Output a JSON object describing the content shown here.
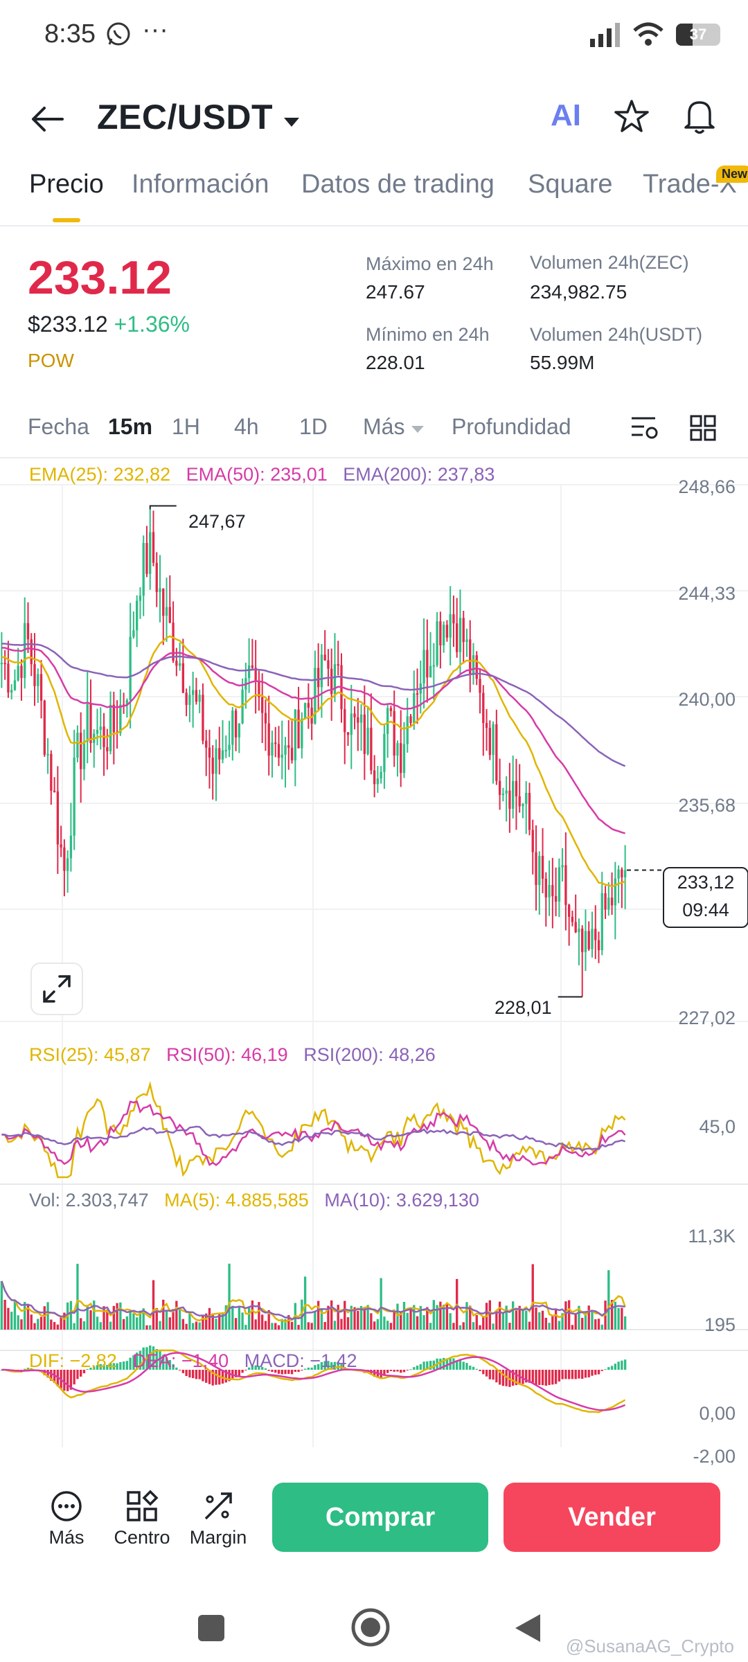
{
  "status_bar": {
    "time": "8:35",
    "battery": "37",
    "battery_level": 0.37
  },
  "header": {
    "pair": "ZEC/USDT",
    "ai_label": "AI"
  },
  "tabs": [
    {
      "label": "Precio",
      "active": true
    },
    {
      "label": "Información"
    },
    {
      "label": "Datos de trading"
    },
    {
      "label": "Square"
    },
    {
      "label": "Trade-X",
      "badge": "New"
    }
  ],
  "price": {
    "last": "233.12",
    "usd": "$233.12",
    "change": "+1.36%",
    "tag": "POW"
  },
  "stats": {
    "high_label": "Máximo en 24h",
    "high_value": "247.67",
    "low_label": "Mínimo en 24h",
    "low_value": "228.01",
    "vol_base_label": "Volumen 24h(ZEC)",
    "vol_base_value": "234,982.75",
    "vol_quote_label": "Volumen 24h(USDT)",
    "vol_quote_value": "55.99M"
  },
  "intervals": {
    "fecha": "Fecha",
    "m15": "15m",
    "h1": "1H",
    "h4": "4h",
    "d1": "1D",
    "mas": "Más",
    "depth": "Profundidad"
  },
  "indicators": {
    "ema25": "EMA(25): 232,82",
    "ema50": "EMA(50): 235,01",
    "ema200": "EMA(200): 237,83",
    "rsi25": "RSI(25): 45,87",
    "rsi50": "RSI(50): 46,19",
    "rsi200": "RSI(200): 48,26",
    "vol": "Vol: 2.303,747",
    "ma5": "MA(5): 4.885,585",
    "ma10": "MA(10): 3.629,130",
    "dif": "DIF: −2,82",
    "dea": "DEA: −1,40",
    "macd": "MACD: −1,42"
  },
  "chart_labels": {
    "price_axis": [
      "248,66",
      "244,33",
      "240,00",
      "235,68",
      "227,02"
    ],
    "high_marker": "247,67",
    "low_marker": "228,01",
    "current_price": "233,12",
    "countdown": "09:44",
    "rsi_axis": "45,0",
    "vol_axis_top": "11,3K",
    "vol_axis_bottom": "195",
    "macd_axis_top": "0,00",
    "macd_axis_bottom": "-2,00"
  },
  "chart_data": {
    "type": "candlestick",
    "interval": "15m",
    "ylim": [
      227.02,
      248.66
    ],
    "high": 247.67,
    "low": 228.01,
    "last": 233.12,
    "ema25_last": 232.82,
    "ema50_last": 235.01,
    "ema200_last": 237.83,
    "close_path": [
      241.5,
      240.8,
      242.5,
      240.2,
      236.8,
      233.0,
      237.5,
      239.0,
      238.5,
      238.8,
      240.5,
      245.0,
      246.0,
      243.5,
      242.0,
      240.5,
      239.0,
      237.0,
      238.5,
      239.5,
      240.5,
      239.0,
      238.5,
      237.5,
      239.5,
      240.0,
      241.5,
      240.5,
      239.0,
      238.5,
      237.5,
      239.0,
      238.0,
      240.5,
      241.5,
      243.0,
      243.5,
      242.5,
      240.5,
      239.0,
      237.0,
      236.5,
      235.5,
      233.0,
      231.5,
      232.5,
      230.0,
      229.5,
      231.0,
      232.0,
      233.12
    ],
    "rsi_ylim": [
      35,
      60
    ],
    "volume_ylim": [
      0,
      11300
    ],
    "macd_ylim": [
      -2.0,
      0.5
    ]
  },
  "actions": {
    "more": "Más",
    "center": "Centro",
    "margin": "Margin",
    "buy": "Comprar",
    "sell": "Vender"
  },
  "watermark": "@SusanaAG_Crypto",
  "colors": {
    "up": "#2ebd85",
    "down": "#e0294a",
    "ema25": "#e0b500",
    "ema50": "#d63ba7",
    "ema200": "#8a63b8",
    "accent": "#f0b90b"
  }
}
